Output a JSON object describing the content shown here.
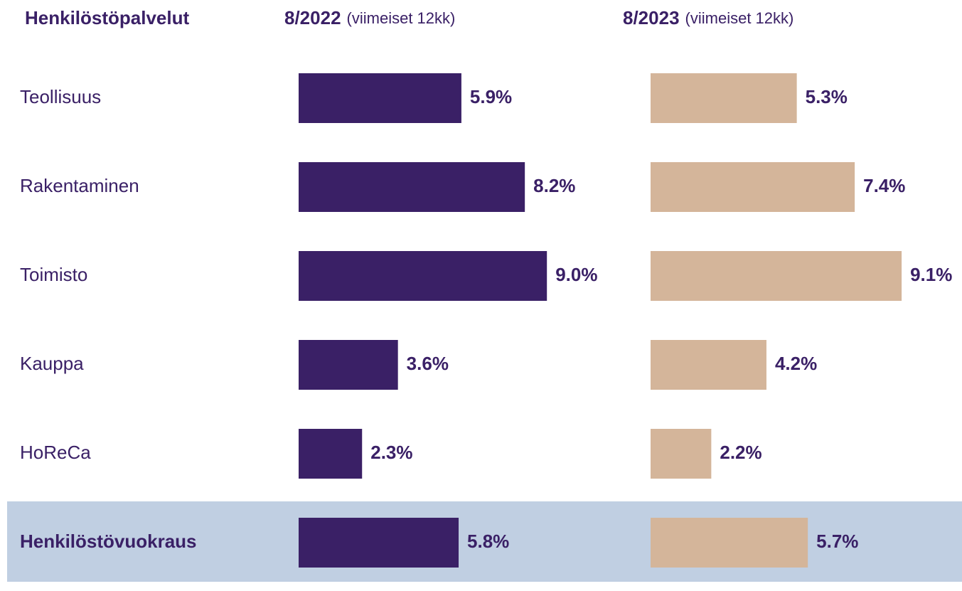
{
  "chart_data": {
    "type": "bar",
    "orientation": "horizontal",
    "title": "Henkilöstöpalvelut",
    "categories": [
      "Teollisuus",
      "Rakentaminen",
      "Toimisto",
      "Kauppa",
      "HoReCa",
      "Henkilöstövuokraus"
    ],
    "series": [
      {
        "name": "8/2022",
        "subtitle": "(viimeiset 12kk)",
        "color": "#3a2066",
        "values": [
          5.9,
          8.2,
          9.0,
          3.6,
          2.3,
          5.8
        ],
        "value_labels": [
          "5.9%",
          "8.2%",
          "9.0%",
          "3.6%",
          "2.3%",
          "5.8%"
        ]
      },
      {
        "name": "8/2023",
        "subtitle": "(viimeiset 12kk)",
        "color": "#d4b59a",
        "values": [
          5.3,
          7.4,
          9.1,
          4.2,
          2.2,
          5.7
        ],
        "value_labels": [
          "5.3%",
          "7.4%",
          "9.1%",
          "4.2%",
          "2.2%",
          "5.7%"
        ]
      }
    ]
  }
}
